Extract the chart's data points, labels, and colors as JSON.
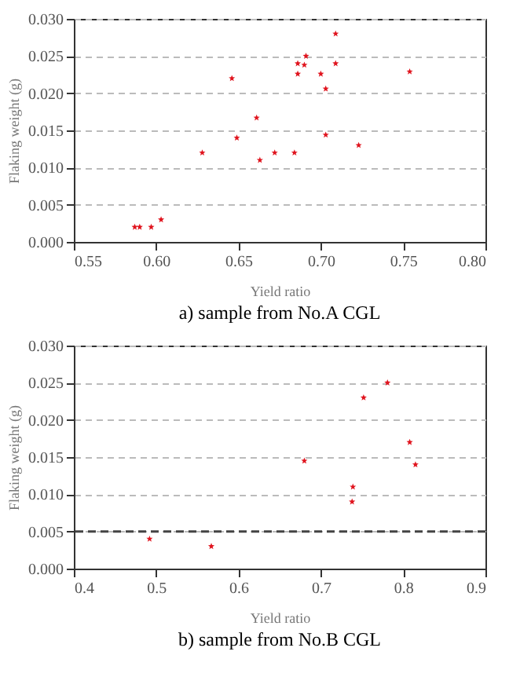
{
  "chart_data": [
    {
      "type": "scatter",
      "xlabel": "Yield ratio",
      "ylabel": "Flaking weight (g)",
      "annotations": [
        "a) sample from No.A CGL"
      ],
      "series": [
        {
          "color": "#e0141e",
          "x": [
            0.587,
            0.59,
            0.597,
            0.603,
            0.628,
            0.646,
            0.649,
            0.661,
            0.663,
            0.672,
            0.684,
            0.686,
            0.686,
            0.69,
            0.691,
            0.7,
            0.703,
            0.703,
            0.709,
            0.709,
            0.723,
            0.754
          ],
          "values": [
            0.002,
            0.002,
            0.002,
            0.003,
            0.012,
            0.022,
            0.014,
            0.0167,
            0.011,
            0.012,
            0.012,
            0.024,
            0.0226,
            0.0238,
            0.025,
            0.0226,
            0.0206,
            0.0144,
            0.028,
            0.024,
            0.013,
            0.0229
          ]
        }
      ],
      "xlim": [
        0.55,
        0.8
      ],
      "xticks": [
        {
          "value": 0.55,
          "label": "0.55"
        },
        {
          "value": 0.6,
          "label": "0.60"
        },
        {
          "value": 0.65,
          "label": "0.65"
        },
        {
          "value": 0.7,
          "label": "0.70"
        },
        {
          "value": 0.75,
          "label": "0.75"
        },
        {
          "value": 0.8,
          "label": "0.80"
        }
      ],
      "ylim": [
        0,
        0.03
      ],
      "yticks": [
        {
          "value": 0,
          "label": "0.000"
        },
        {
          "value": 0.005,
          "label": "0.005"
        },
        {
          "value": 0.01,
          "label": "0.010"
        },
        {
          "value": 0.015,
          "label": "0.015"
        },
        {
          "value": 0.02,
          "label": "0.020"
        },
        {
          "value": 0.025,
          "label": "0.025"
        },
        {
          "value": 0.03,
          "label": "0.030"
        }
      ],
      "grid": "y",
      "marker": "star"
    },
    {
      "type": "scatter",
      "xlabel": "Yield ratio",
      "ylabel": "Flaking weight (g)",
      "annotations": [
        "b) sample from No.B CGL"
      ],
      "series": [
        {
          "color": "#e0141e",
          "x": [
            0.492,
            0.567,
            0.68,
            0.739,
            0.738,
            0.752,
            0.781,
            0.808,
            0.815
          ],
          "values": [
            0.004,
            0.003,
            0.0145,
            0.011,
            0.009,
            0.023,
            0.025,
            0.017,
            0.014
          ]
        }
      ],
      "xlim": [
        0.4,
        0.9
      ],
      "xticks": [
        0.4,
        0.5,
        0.6,
        0.7,
        0.8,
        0.9
      ],
      "ylim": [
        0,
        0.03
      ],
      "yticks": [
        {
          "value": 0,
          "label": "0.000"
        },
        {
          "value": 0.005,
          "label": "0.005"
        },
        {
          "value": 0.01,
          "label": "0.010"
        },
        {
          "value": 0.015,
          "label": "0.015"
        },
        {
          "value": 0.02,
          "label": "0.020"
        },
        {
          "value": 0.025,
          "label": "0.025"
        },
        {
          "value": 0.03,
          "label": "0.030"
        }
      ],
      "ref_lines": [
        {
          "axis": "y",
          "value": 0.005,
          "color": "#444444",
          "line_style": "dashed"
        }
      ],
      "grid": "y",
      "marker": "star"
    }
  ]
}
